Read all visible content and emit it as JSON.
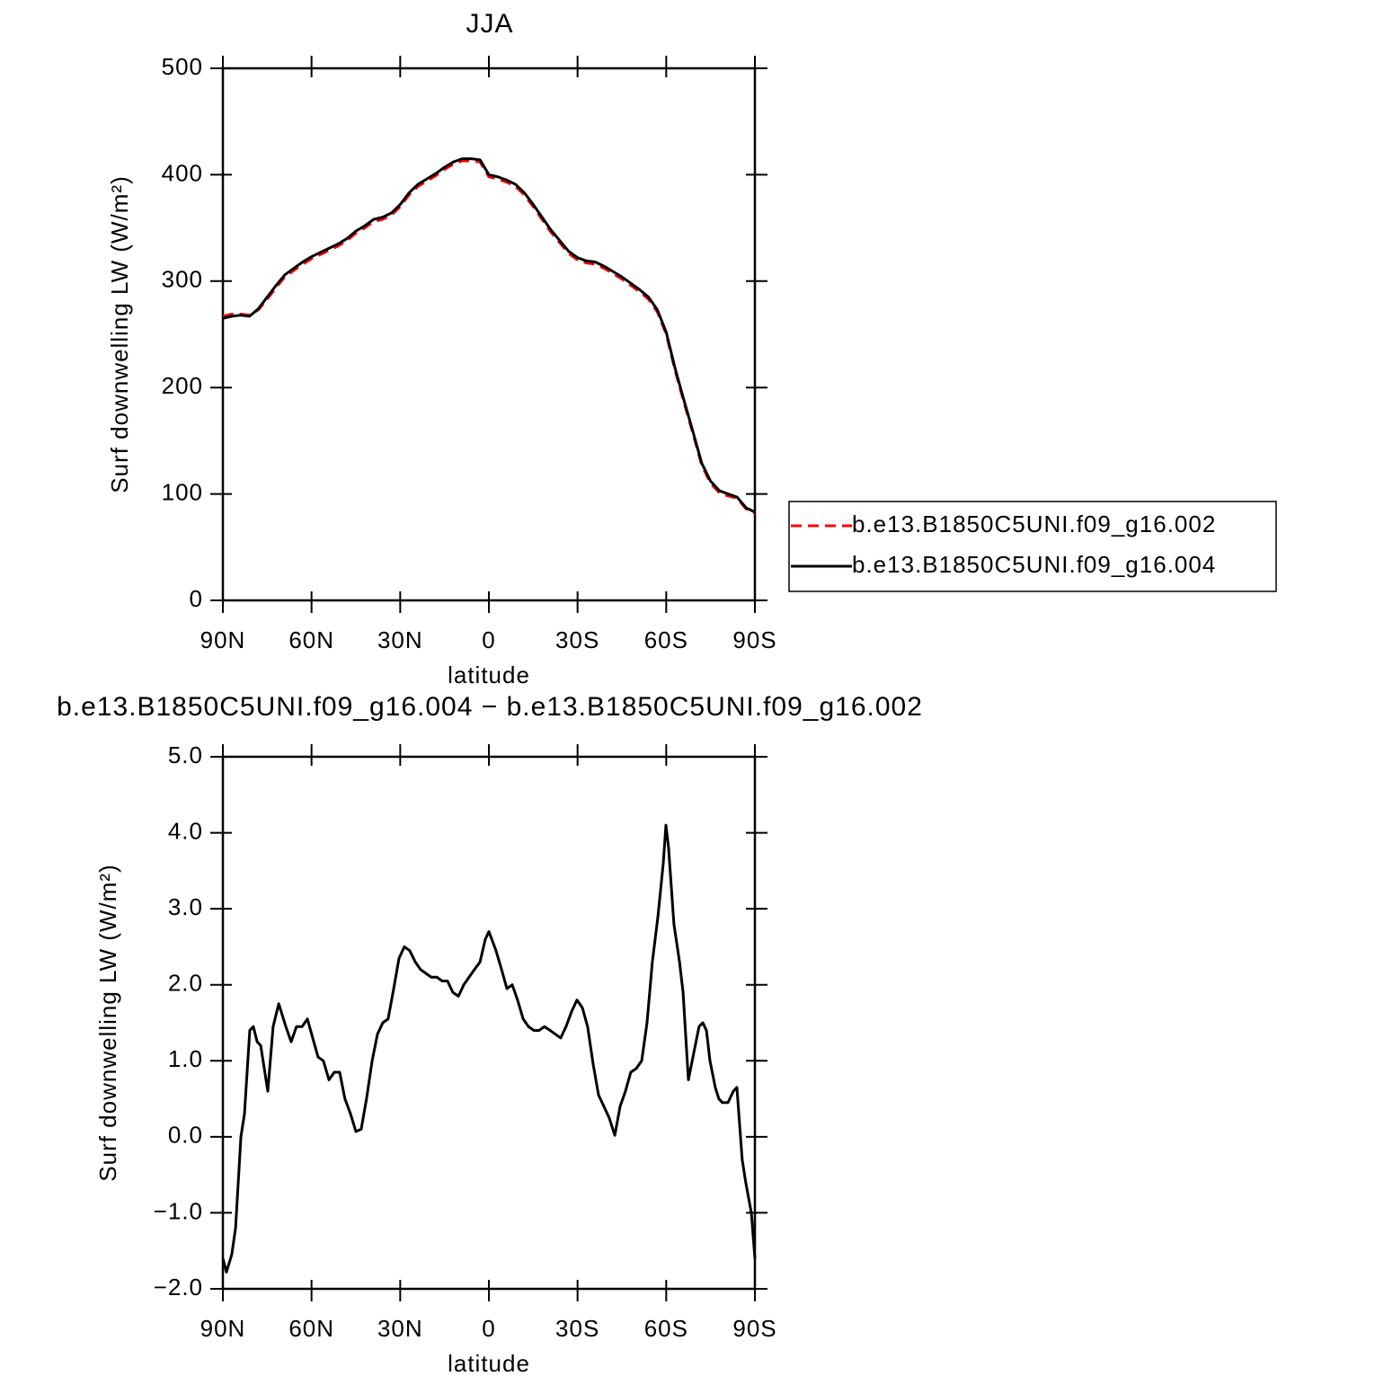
{
  "chart_data": [
    {
      "type": "line",
      "title": "JJA",
      "xlabel": "latitude",
      "ylabel": "Surf downwelling LW (W/m²)",
      "x": [
        90,
        87,
        84,
        81,
        78,
        75,
        72,
        69,
        66,
        63,
        60,
        57,
        54,
        51,
        48,
        45,
        42,
        39,
        36,
        33,
        30,
        27,
        24,
        21,
        18,
        15,
        12,
        9,
        6,
        3,
        0,
        -3,
        -6,
        -9,
        -12,
        -15,
        -18,
        -21,
        -24,
        -27,
        -30,
        -33,
        -36,
        -39,
        -42,
        -45,
        -48,
        -51,
        -54,
        -57,
        -60,
        -63,
        -66,
        -69,
        -72,
        -75,
        -78,
        -81,
        -84,
        -87,
        -90
      ],
      "series": [
        {
          "name": "b.e13.B1850C5UNI.f09_g16.002",
          "color": "#ff0000",
          "dash": true,
          "values": [
            267,
            269,
            269,
            268,
            273,
            283,
            294,
            304,
            310,
            316,
            321,
            325,
            329,
            333,
            338,
            345,
            350,
            356,
            358,
            362,
            370,
            381,
            389,
            394,
            399,
            405,
            410,
            413,
            413,
            412,
            398,
            396,
            393,
            389,
            381,
            370,
            358,
            346,
            336,
            326,
            320,
            317,
            316,
            312,
            307,
            302,
            296,
            290,
            283,
            271,
            250,
            216,
            186,
            157,
            127,
            110,
            101,
            98,
            96,
            86,
            82
          ]
        },
        {
          "name": "b.e13.B1850C5UNI.f09_g16.004",
          "color": "#000000",
          "dash": false,
          "values": [
            265,
            267,
            268,
            267,
            274,
            285,
            296,
            306,
            312,
            318,
            323,
            327,
            331,
            335,
            340,
            347,
            352,
            358,
            360,
            364,
            372,
            383,
            391,
            396,
            401,
            407,
            412,
            415,
            415,
            414,
            400,
            398,
            395,
            391,
            383,
            372,
            360,
            348,
            338,
            328,
            322,
            319,
            318,
            314,
            309,
            304,
            298,
            292,
            285,
            273,
            252,
            218,
            188,
            159,
            129,
            112,
            103,
            100,
            97,
            87,
            83
          ]
        }
      ],
      "xlim": [
        90,
        -90
      ],
      "xticks": [
        {
          "value": 90,
          "label": "90N"
        },
        {
          "value": 60,
          "label": "60N"
        },
        {
          "value": 30,
          "label": "30N"
        },
        0,
        {
          "value": -30,
          "label": "30S"
        },
        {
          "value": -60,
          "label": "60S"
        },
        {
          "value": -90,
          "label": "90S"
        }
      ],
      "ylim": [
        0,
        500
      ],
      "yticks": [
        0,
        100,
        200,
        300,
        400,
        500
      ],
      "legend": "right"
    },
    {
      "type": "line",
      "title": "b.e13.B1850C5UNI.f09_g16.004 − b.e13.B1850C5UNI.f09_g16.002",
      "xlabel": "latitude",
      "ylabel": "Surf downwelling LW (W/m²)",
      "x": [
        90,
        88.8,
        87,
        85.7,
        83.9,
        82.7,
        80.9,
        79.7,
        78.4,
        77.2,
        76,
        74.8,
        73,
        71.1,
        69.9,
        68.7,
        66.9,
        65.1,
        63.2,
        61.4,
        59.6,
        57.8,
        56,
        54.1,
        52.3,
        50.5,
        48.7,
        46.8,
        45,
        43.2,
        41.4,
        39.5,
        37.7,
        35.9,
        34.1,
        32.2,
        30.4,
        28.6,
        26.8,
        24.9,
        23.1,
        21.3,
        19.5,
        17.6,
        15.8,
        14,
        12.2,
        10.3,
        8.5,
        6.7,
        4.9,
        3,
        1.2,
        0,
        -2.4,
        -4.3,
        -6.1,
        -7.9,
        -9.7,
        -11.6,
        -13.4,
        -15.2,
        -17,
        -18.8,
        -20.7,
        -22.5,
        -24.3,
        -26.1,
        -28,
        -29.8,
        -31.6,
        -33.4,
        -35.3,
        -37.1,
        -38.9,
        -40.7,
        -42.6,
        -44.4,
        -46.2,
        -48,
        -49.9,
        -51.7,
        -53.5,
        -55.3,
        -57.2,
        -59,
        -59.9,
        -60.8,
        -62.6,
        -64.5,
        -65.7,
        -67.5,
        -69.3,
        -71.1,
        -72.4,
        -73.6,
        -74.8,
        -76.6,
        -77.8,
        -79,
        -80.9,
        -82.7,
        -83.9,
        -85.7,
        -86.9,
        -88.8,
        -90
      ],
      "series": [
        {
          "color": "#000000",
          "dash": false,
          "values": [
            -1.6,
            -1.78,
            -1.55,
            -1.2,
            0.0,
            0.3,
            1.4,
            1.45,
            1.25,
            1.2,
            0.9,
            0.6,
            1.45,
            1.75,
            1.6,
            1.45,
            1.25,
            1.45,
            1.45,
            1.55,
            1.3,
            1.05,
            1.0,
            0.75,
            0.85,
            0.85,
            0.5,
            0.3,
            0.07,
            0.1,
            0.5,
            1.0,
            1.35,
            1.5,
            1.55,
            1.95,
            2.35,
            2.5,
            2.45,
            2.3,
            2.2,
            2.15,
            2.1,
            2.1,
            2.05,
            2.05,
            1.9,
            1.85,
            2.0,
            2.1,
            2.2,
            2.3,
            2.6,
            2.7,
            2.45,
            2.2,
            1.95,
            2.0,
            1.8,
            1.55,
            1.45,
            1.4,
            1.4,
            1.45,
            1.4,
            1.35,
            1.3,
            1.45,
            1.65,
            1.8,
            1.7,
            1.45,
            0.95,
            0.55,
            0.4,
            0.25,
            0.02,
            0.4,
            0.6,
            0.85,
            0.9,
            1.0,
            1.5,
            2.3,
            2.9,
            3.6,
            4.1,
            3.8,
            2.8,
            2.3,
            1.9,
            0.75,
            1.1,
            1.45,
            1.5,
            1.4,
            1.0,
            0.65,
            0.5,
            0.45,
            0.45,
            0.6,
            0.65,
            -0.3,
            -0.6,
            -1.0,
            -1.6
          ]
        }
      ],
      "xlim": [
        90,
        -90
      ],
      "xticks": [
        {
          "value": 90,
          "label": "90N"
        },
        {
          "value": 60,
          "label": "60N"
        },
        {
          "value": 30,
          "label": "30N"
        },
        0,
        {
          "value": -30,
          "label": "30S"
        },
        {
          "value": -60,
          "label": "60S"
        },
        {
          "value": -90,
          "label": "90S"
        }
      ],
      "ylim": [
        -2,
        5
      ],
      "yticks": [
        {
          "value": -2,
          "label": "−2.0"
        },
        {
          "value": -1,
          "label": "−1.0"
        },
        {
          "value": 0,
          "label": "0.0"
        },
        {
          "value": 1,
          "label": "1.0"
        },
        {
          "value": 2,
          "label": "2.0"
        },
        {
          "value": 3,
          "label": "3.0"
        },
        {
          "value": 4,
          "label": "4.0"
        },
        {
          "value": 5,
          "label": "5.0"
        }
      ]
    }
  ]
}
